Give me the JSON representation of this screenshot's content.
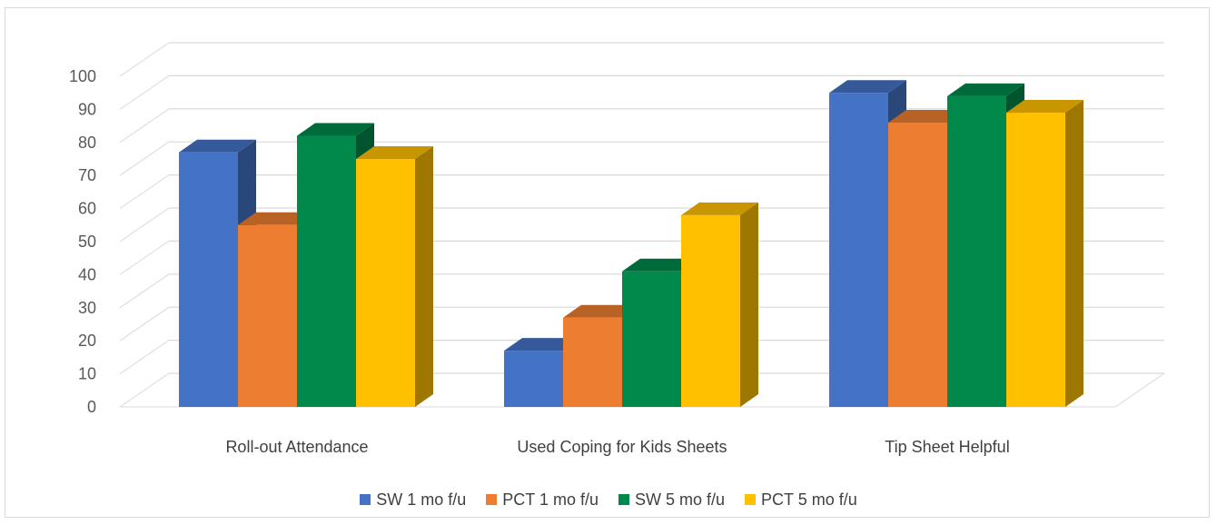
{
  "chart_data": {
    "type": "bar",
    "style": "3d-clustered-column",
    "categories": [
      "Roll-out Attendance",
      "Used Coping for Kids Sheets",
      "Tip Sheet Helpful"
    ],
    "series": [
      {
        "name": "SW 1 mo f/u",
        "color": "#4472C4",
        "values": [
          77,
          17,
          95
        ]
      },
      {
        "name": "PCT 1 mo f/u",
        "color": "#ED7D31",
        "values": [
          55,
          27,
          86
        ]
      },
      {
        "name": "SW 5 mo f/u",
        "color": "#00894A",
        "values": [
          82,
          41,
          94
        ]
      },
      {
        "name": "PCT 5 mo f/u",
        "color": "#FFC000",
        "values": [
          75,
          58,
          89
        ]
      }
    ],
    "yticks": [
      "0",
      "10",
      "20",
      "30",
      "40",
      "50",
      "60",
      "70",
      "80",
      "90",
      "100"
    ],
    "ylim": [
      0,
      100
    ],
    "grid": true,
    "legend_position": "bottom",
    "title": "",
    "xlabel": "",
    "ylabel": ""
  }
}
